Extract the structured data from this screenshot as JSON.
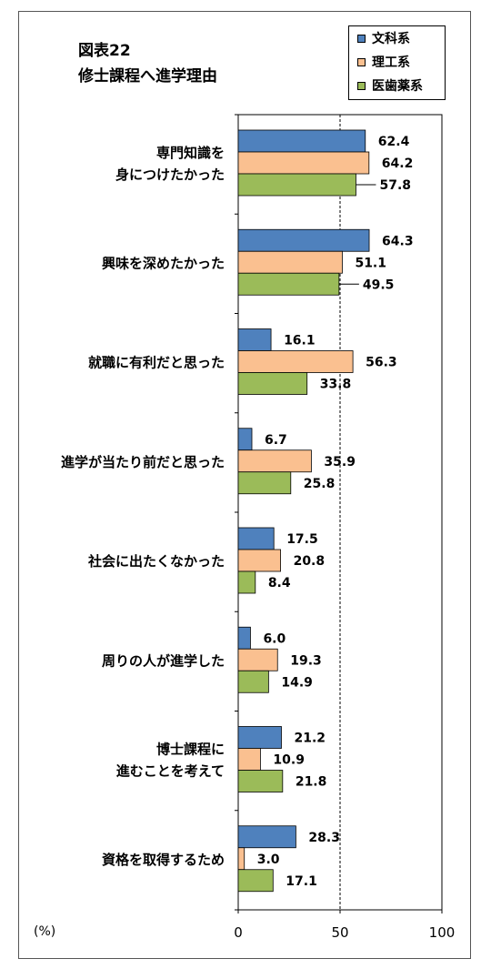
{
  "title_line1": "図表22",
  "title_line2": "修士課程へ進学理由",
  "unit_label": "(%)",
  "chart_data": {
    "type": "bar",
    "orientation": "horizontal",
    "title": "図表22 修士課程へ進学理由",
    "xlabel": "(%)",
    "ylabel": "",
    "xlim": [
      0,
      100
    ],
    "xticks": [
      "0",
      "50",
      "100"
    ],
    "grid": "dashed vertical line at 50",
    "legend_position": "top-right",
    "categories": [
      [
        "専門知識を",
        "身につけたかった"
      ],
      [
        "興味を深めたかった"
      ],
      [
        "就職に有利だと思った"
      ],
      [
        "進学が当たり前だと思った"
      ],
      [
        "社会に出たくなかった"
      ],
      [
        "周りの人が進学した"
      ],
      [
        "博士課程に",
        "進むことを考えて"
      ],
      [
        "資格を取得するため"
      ]
    ],
    "series": [
      {
        "name": "文科系",
        "color": "#4f81bd",
        "values": [
          62.4,
          64.3,
          16.1,
          6.7,
          17.5,
          6.0,
          21.2,
          28.3
        ],
        "labels": [
          "62.4",
          "64.3",
          "16.1",
          "6.7",
          "17.5",
          "6.0",
          "21.2",
          "28.3"
        ]
      },
      {
        "name": "理工系",
        "color": "#fac090",
        "values": [
          64.2,
          51.1,
          56.3,
          35.9,
          20.8,
          19.3,
          10.9,
          3.0
        ],
        "labels": [
          "64.2",
          "51.1",
          "56.3",
          "35.9",
          "20.8",
          "19.3",
          "10.9",
          "3.0"
        ]
      },
      {
        "name": "医歯薬系",
        "color": "#9bbb59",
        "values": [
          57.8,
          49.5,
          33.8,
          25.8,
          8.4,
          14.9,
          21.8,
          17.1
        ],
        "labels": [
          "57.8",
          "49.5",
          "33.8",
          "25.8",
          "8.4",
          "14.9",
          "21.8",
          "17.1"
        ]
      }
    ]
  }
}
